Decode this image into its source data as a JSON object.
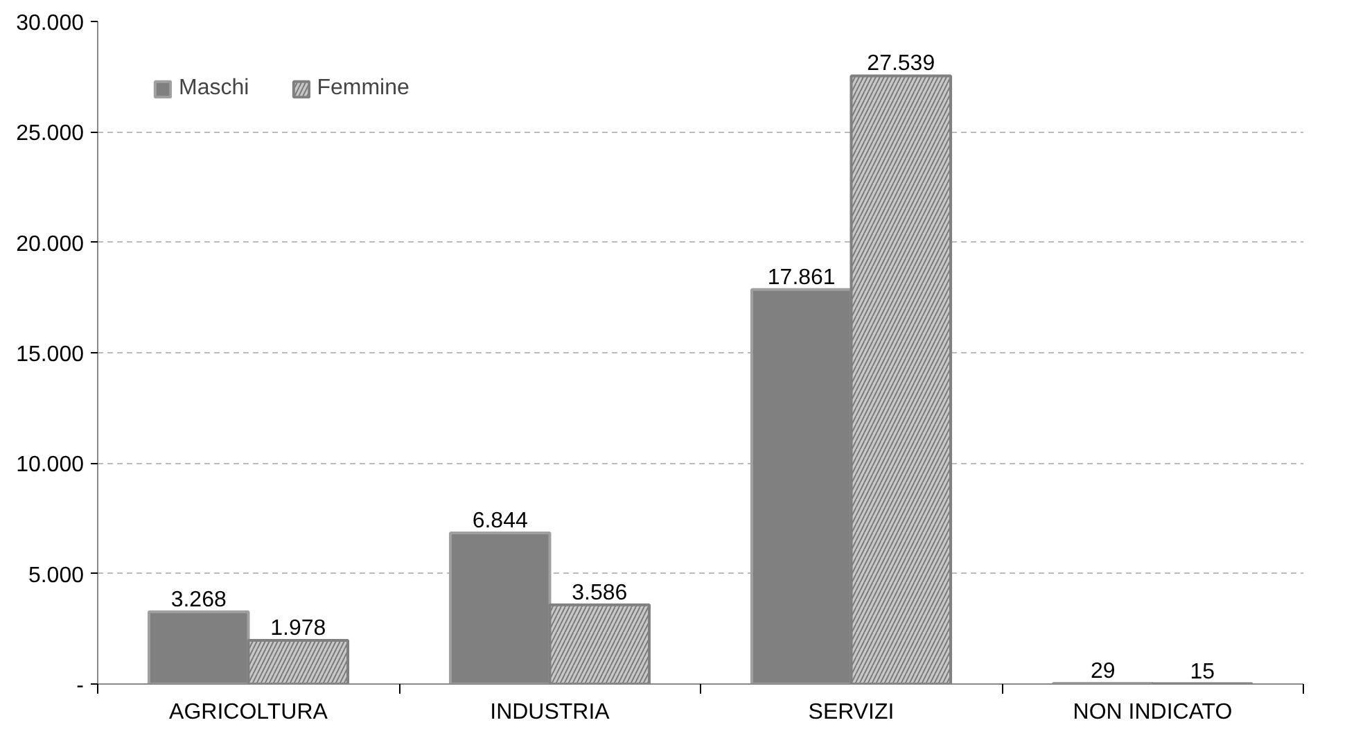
{
  "chart_data": {
    "type": "bar",
    "categories": [
      "AGRICOLTURA",
      "INDUSTRIA",
      "SERVIZI",
      "NON INDICATO"
    ],
    "series": [
      {
        "name": "Maschi",
        "color": "#808080",
        "values": [
          3268,
          6844,
          17861,
          29
        ],
        "value_labels": [
          "3.268",
          "6.844",
          "17.861",
          "29"
        ]
      },
      {
        "name": "Femmine",
        "color": "#c8c8c8",
        "values": [
          1978,
          3586,
          27539,
          15
        ],
        "value_labels": [
          "1.978",
          "3.586",
          "27.539",
          "15"
        ]
      }
    ],
    "ylim": [
      0,
      30000
    ],
    "yticks": [
      {
        "value": 0,
        "label": "-"
      },
      {
        "value": 5000,
        "label": "5.000"
      },
      {
        "value": 10000,
        "label": "10.000"
      },
      {
        "value": 15000,
        "label": "15.000"
      },
      {
        "value": 20000,
        "label": "20.000"
      },
      {
        "value": 25000,
        "label": "25.000"
      },
      {
        "value": 30000,
        "label": "30.000"
      }
    ],
    "grid": "y",
    "legend": "top left"
  }
}
